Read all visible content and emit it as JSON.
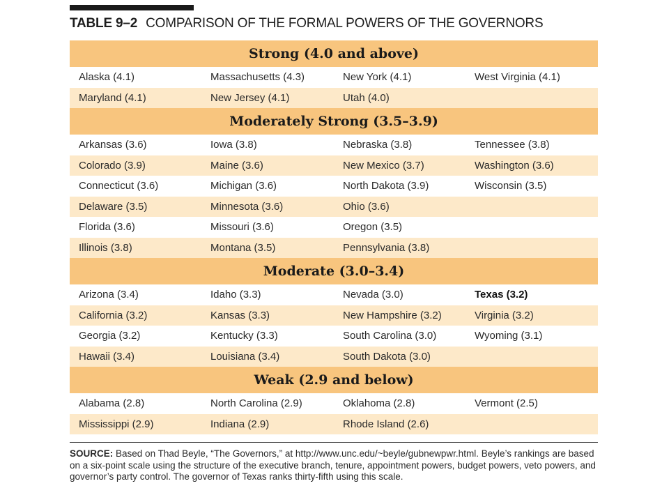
{
  "title": {
    "label": "TABLE 9–2",
    "text": "COMPARISON OF THE FORMAL POWERS OF THE GOVERNORS"
  },
  "sections": [
    {
      "header": "Strong (4.0 and above)",
      "rows": [
        [
          "Alaska (4.1)",
          "Massachusetts (4.3)",
          "New York (4.1)",
          "West Virginia (4.1)"
        ],
        [
          "Maryland (4.1)",
          "New Jersey (4.1)",
          "Utah (4.0)",
          ""
        ]
      ]
    },
    {
      "header": "Moderately Strong (3.5–3.9)",
      "rows": [
        [
          "Arkansas (3.6)",
          "Iowa (3.8)",
          "Nebraska (3.8)",
          "Tennessee (3.8)"
        ],
        [
          "Colorado (3.9)",
          "Maine (3.6)",
          "New Mexico (3.7)",
          "Washington (3.6)"
        ],
        [
          "Connecticut (3.6)",
          "Michigan (3.6)",
          "North Dakota (3.9)",
          "Wisconsin (3.5)"
        ],
        [
          "Delaware (3.5)",
          "Minnesota (3.6)",
          "Ohio (3.6)",
          ""
        ],
        [
          "Florida (3.6)",
          "Missouri (3.6)",
          "Oregon (3.5)",
          ""
        ],
        [
          "Illinois (3.8)",
          "Montana (3.5)",
          "Pennsylvania (3.8)",
          ""
        ]
      ]
    },
    {
      "header": "Moderate (3.0–3.4)",
      "rows": [
        [
          "Arizona (3.4)",
          "Idaho (3.3)",
          "Nevada (3.0)",
          "Texas (3.2)"
        ],
        [
          "California (3.2)",
          "Kansas (3.3)",
          "New Hampshire (3.2)",
          "Virginia (3.2)"
        ],
        [
          "Georgia (3.2)",
          "Kentucky (3.3)",
          "South Carolina (3.0)",
          "Wyoming (3.1)"
        ],
        [
          "Hawaii (3.4)",
          "Louisiana (3.4)",
          "South Dakota (3.0)",
          ""
        ]
      ]
    },
    {
      "header": "Weak (2.9 and below)",
      "rows": [
        [
          "Alabama (2.8)",
          "North Carolina (2.9)",
          "Oklahoma (2.8)",
          "Vermont (2.5)"
        ],
        [
          "Mississippi (2.9)",
          "Indiana (2.9)",
          "Rhode Island (2.6)",
          ""
        ]
      ]
    }
  ],
  "highlighted_entry": "Texas (3.2)",
  "source": {
    "label": "SOURCE:",
    "text": "Based on Thad Beyle, “The Governors,” at http://www.unc.edu/~beyle/gubnewpwr.html. Beyle’s rankings are based on a six-point scale using the structure of the executive branch, tenure, appointment powers, budget powers, veto powers, and governor’s party control. The governor of Texas ranks thirty-fifth using this scale."
  },
  "colors": {
    "header_band": "#f8c57e",
    "alt_row": "#fde9c9"
  }
}
